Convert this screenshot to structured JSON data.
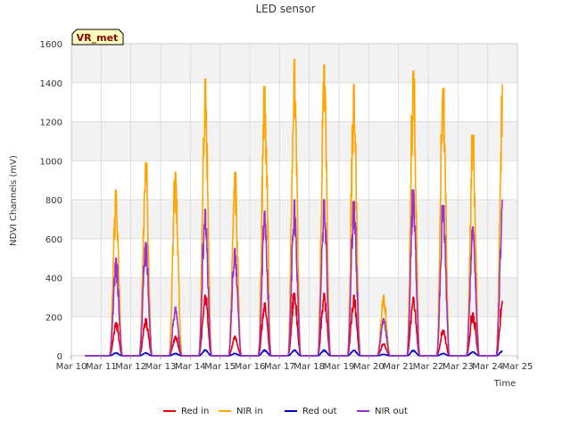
{
  "chart_data": {
    "type": "line",
    "title": "LED sensor",
    "xlabel": "Time",
    "ylabel": "NDVI Channels (mV)",
    "badge": "VR_met",
    "ylim": [
      0,
      1600
    ],
    "yticks": [
      0,
      200,
      400,
      600,
      800,
      1000,
      1200,
      1400,
      1600
    ],
    "xlim": [
      10,
      25
    ],
    "xticks": [
      {
        "value": 10,
        "label": "Mar 10"
      },
      {
        "value": 11,
        "label": "Mar 11"
      },
      {
        "value": 12,
        "label": "Mar 12"
      },
      {
        "value": 13,
        "label": "Mar 13"
      },
      {
        "value": 14,
        "label": "Mar 14"
      },
      {
        "value": 15,
        "label": "Mar 15"
      },
      {
        "value": 16,
        "label": "Mar 16"
      },
      {
        "value": 17,
        "label": "Mar 17"
      },
      {
        "value": 18,
        "label": "Mar 18"
      },
      {
        "value": 19,
        "label": "Mar 19"
      },
      {
        "value": 20,
        "label": "Mar 20"
      },
      {
        "value": 21,
        "label": "Mar 21"
      },
      {
        "value": 22,
        "label": "Mar 22"
      },
      {
        "value": 23,
        "label": "Mar 23"
      },
      {
        "value": 24,
        "label": "Mar 24"
      },
      {
        "value": 25,
        "label": "Mar 25"
      }
    ],
    "grid": true,
    "legend_position": "bottom",
    "data_start": 10.45,
    "data_end": 24.5,
    "series": [
      {
        "name": "Red in",
        "color": "#e8000b",
        "daily_peaks": [
          170,
          190,
          100,
          310,
          100,
          270,
          320,
          320,
          310,
          60,
          300,
          130,
          220,
          280
        ]
      },
      {
        "name": "NIR in",
        "color": "#ffa500",
        "daily_peaks": [
          850,
          990,
          940,
          1420,
          940,
          1380,
          1520,
          1490,
          1390,
          310,
          1460,
          1370,
          1130,
          1390
        ]
      },
      {
        "name": "Red out",
        "color": "#0000cc",
        "daily_peaks": [
          15,
          15,
          12,
          30,
          12,
          30,
          30,
          30,
          28,
          8,
          28,
          12,
          20,
          25
        ]
      },
      {
        "name": "NIR out",
        "color": "#9a32cd",
        "daily_peaks": [
          500,
          580,
          250,
          750,
          550,
          740,
          800,
          800,
          790,
          190,
          850,
          770,
          660,
          800
        ]
      }
    ]
  }
}
